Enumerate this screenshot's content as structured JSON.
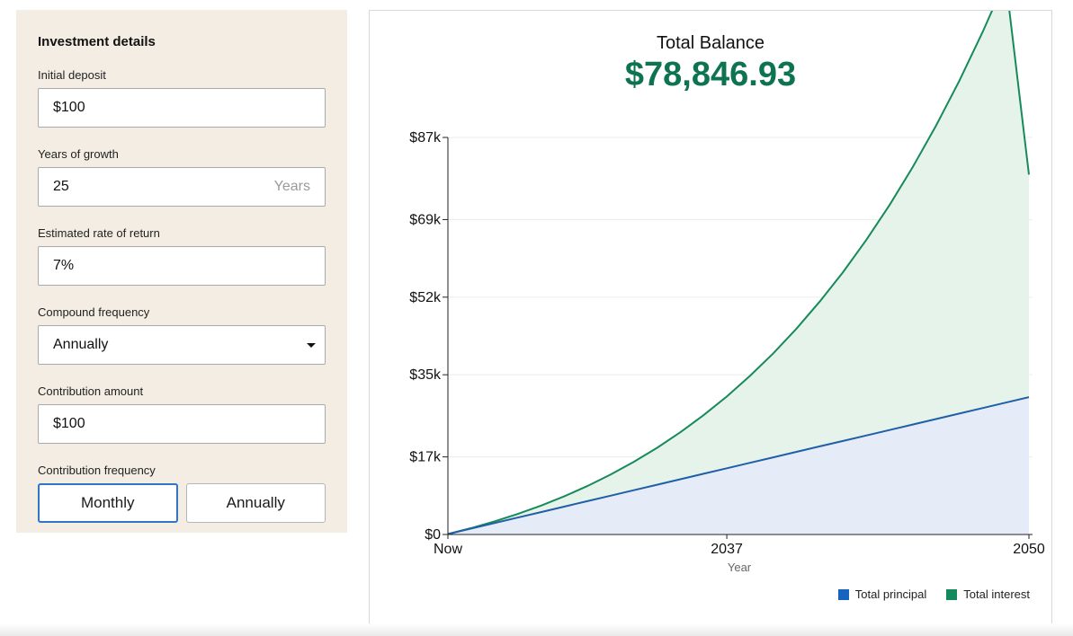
{
  "form": {
    "title": "Investment details",
    "initial_deposit": {
      "label": "Initial deposit",
      "value": "$100"
    },
    "years_of_growth": {
      "label": "Years of growth",
      "value": "25",
      "suffix": "Years"
    },
    "rate_of_return": {
      "label": "Estimated rate of return",
      "value": "7%"
    },
    "compound_frequency": {
      "label": "Compound frequency",
      "value": "Annually"
    },
    "contribution_amount": {
      "label": "Contribution amount",
      "value": "$100"
    },
    "contribution_frequency": {
      "label": "Contribution frequency",
      "options": [
        "Monthly",
        "Annually"
      ],
      "selected": "Monthly"
    }
  },
  "summary": {
    "label": "Total Balance",
    "value": "$78,846.93"
  },
  "colors": {
    "principal_line": "#1f5fa8",
    "principal_fill": "#e6ecf7",
    "interest_line": "#178a5a",
    "interest_fill": "#e5f3ea",
    "legend_principal": "#1565c0",
    "legend_interest": "#138a5c",
    "total_green": "#0e7350"
  },
  "legend": {
    "principal": "Total principal",
    "interest": "Total interest"
  },
  "chart_data": {
    "type": "area",
    "xlabel": "Year",
    "ylabel": "",
    "x_tick_labels": [
      "Now",
      "2037",
      "2050"
    ],
    "x": [
      2025,
      2026,
      2027,
      2028,
      2029,
      2030,
      2031,
      2032,
      2033,
      2034,
      2035,
      2036,
      2037,
      2038,
      2039,
      2040,
      2041,
      2042,
      2043,
      2044,
      2045,
      2046,
      2047,
      2048,
      2049,
      2050
    ],
    "xlim": [
      2025,
      2050
    ],
    "y_ticks": [
      0,
      17000,
      35000,
      52000,
      69000,
      87000
    ],
    "y_tick_labels": [
      "$0",
      "$17k",
      "$35k",
      "$52k",
      "$69k",
      "$87k"
    ],
    "ylim": [
      0,
      87000
    ],
    "grid": true,
    "legend_position": "bottom-right",
    "series": [
      {
        "name": "Total principal",
        "values": [
          100,
          1300,
          2500,
          3700,
          4900,
          6100,
          7300,
          8500,
          9700,
          10900,
          12100,
          13300,
          14500,
          15700,
          16900,
          18100,
          19300,
          20500,
          21700,
          22900,
          24100,
          25300,
          26500,
          27700,
          28900,
          30100
        ]
      },
      {
        "name": "Total interest",
        "values": [
          0,
          107,
          362,
          796,
          1419,
          2253,
          3318,
          4632,
          6216,
          8094,
          10290,
          12831,
          15742,
          19057,
          22803,
          27017,
          31730,
          36983,
          42815,
          49271,
          56396,
          64241,
          72857,
          82301,
          92634,
          48747
        ]
      }
    ],
    "total_balance": [
      100,
      1407,
      2862,
      4496,
      6319,
      8353,
      10618,
      13132,
      15916,
      18994,
      22390,
      26131,
      30242,
      34757,
      39703,
      45117,
      51030,
      57483,
      64515,
      72171,
      80496,
      89541,
      99357,
      110001,
      121534,
      78847
    ]
  }
}
